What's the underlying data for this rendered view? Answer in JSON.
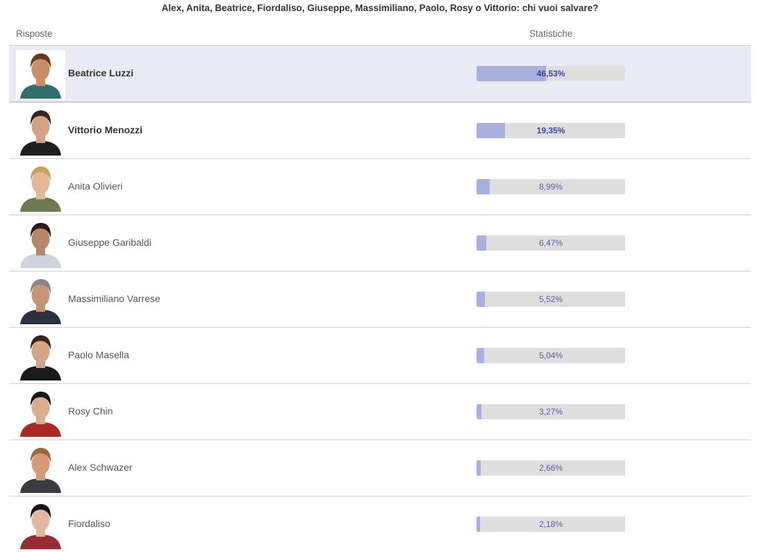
{
  "poll": {
    "question": "Alex, Anita, Beatrice, Fiordaliso, Giuseppe, Massimiliano, Paolo, Rosy o Vittorio: chi vuoi salvare?",
    "header_answers": "Risposte",
    "header_stats": "Statistiche"
  },
  "results": [
    {
      "name": "Beatrice Luzzi",
      "percent_label": "46,53%",
      "percent": 46.53,
      "leading": true
    },
    {
      "name": "Vittorio Menozzi",
      "percent_label": "19,35%",
      "percent": 19.35,
      "leading": false
    },
    {
      "name": "Anita Olivieri",
      "percent_label": "8,99%",
      "percent": 8.99,
      "leading": false
    },
    {
      "name": "Giuseppe Garibaldi",
      "percent_label": "6,47%",
      "percent": 6.47,
      "leading": false
    },
    {
      "name": "Massimiliano Varrese",
      "percent_label": "5,52%",
      "percent": 5.52,
      "leading": false
    },
    {
      "name": "Paolo Masella",
      "percent_label": "5,04%",
      "percent": 5.04,
      "leading": false
    },
    {
      "name": "Rosy Chin",
      "percent_label": "3,27%",
      "percent": 3.27,
      "leading": false
    },
    {
      "name": "Alex Schwazer",
      "percent_label": "2,66%",
      "percent": 2.66,
      "leading": false
    },
    {
      "name": "Fiordaliso",
      "percent_label": "2,18%",
      "percent": 2.18,
      "leading": false
    }
  ],
  "colors": {
    "bar_fill": "#aab0dd",
    "bar_track": "#dedede",
    "highlight_row": "#e9eaf5",
    "label_text": "#5560a8"
  }
}
